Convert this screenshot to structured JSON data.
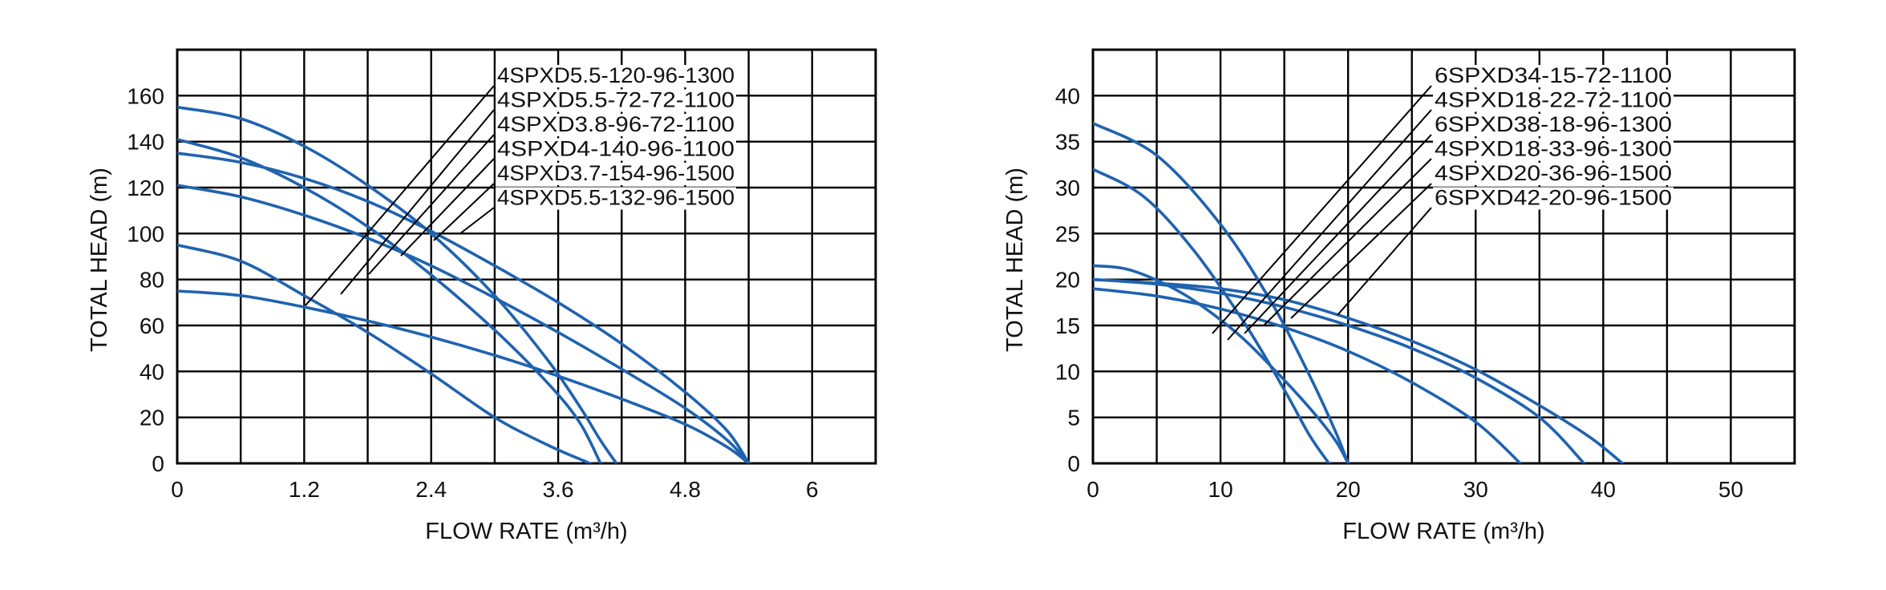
{
  "chart_data": [
    {
      "type": "line",
      "title": "",
      "xlabel": "FLOW  RATE (m³/h)",
      "ylabel": "TOTAL HEAD (m)",
      "xlim": [
        0,
        6.6
      ],
      "ylim": [
        0,
        180
      ],
      "x_ticks": [
        "0",
        "1.2",
        "2.4",
        "3.6",
        "4.8",
        "6"
      ],
      "x_tick_values": [
        0,
        1.2,
        2.4,
        3.6,
        4.8,
        6
      ],
      "y_ticks": [
        "0",
        "20",
        "40",
        "60",
        "80",
        "100",
        "120",
        "140",
        "160"
      ],
      "y_tick_values": [
        0,
        20,
        40,
        60,
        80,
        100,
        120,
        140,
        160
      ],
      "grid": true,
      "line_color": "#1f63b0",
      "series": [
        {
          "name": "4SPXD5.5-120-96-1300",
          "x": [
            0,
            0.6,
            1.2,
            1.8,
            2.4,
            3.0,
            3.5,
            3.8,
            4.0,
            4.15
          ],
          "y": [
            155,
            150,
            138,
            121,
            100,
            73,
            45,
            25,
            10,
            0
          ]
        },
        {
          "name": "4SPXD5.5-72-72-1100",
          "x": [
            0,
            0.6,
            1.2,
            1.8,
            2.4,
            3.0,
            3.5,
            3.8,
            4.0
          ],
          "y": [
            141,
            133,
            120,
            103,
            82,
            58,
            35,
            18,
            0
          ]
        },
        {
          "name": "4SPXD3.8-96-72-1100",
          "x": [
            0,
            0.6,
            1.2,
            1.8,
            2.4,
            3.0,
            3.6,
            4.2,
            4.8,
            5.2,
            5.4
          ],
          "y": [
            135,
            131,
            124,
            114,
            101,
            86,
            70,
            52,
            31,
            14,
            0
          ]
        },
        {
          "name": "4SPXD4-140-96-1100",
          "x": [
            0,
            0.6,
            1.2,
            1.8,
            2.4,
            3.0,
            3.6,
            4.2,
            4.8,
            5.2,
            5.4
          ],
          "y": [
            121,
            116,
            108,
            98,
            86,
            72,
            57,
            41,
            24,
            10,
            0
          ]
        },
        {
          "name": "4SPXD3.7-154-96-1500",
          "x": [
            0,
            0.6,
            1.2,
            1.8,
            2.4,
            3.0,
            3.5,
            3.9
          ],
          "y": [
            95,
            88,
            73,
            57,
            39,
            20,
            8,
            0
          ]
        },
        {
          "name": "4SPXD5.5-132-96-1500",
          "x": [
            0,
            0.6,
            1.2,
            1.8,
            2.4,
            3.0,
            3.6,
            4.2,
            4.8,
            5.2,
            5.4
          ],
          "y": [
            75,
            73,
            68,
            62,
            55,
            47,
            38,
            28,
            17,
            7,
            0
          ]
        }
      ]
    },
    {
      "type": "line",
      "title": "",
      "xlabel": "FLOW  RATE (m³/h)",
      "ylabel": "TOTAL HEAD (m)",
      "xlim": [
        0,
        55
      ],
      "ylim": [
        0,
        45
      ],
      "x_ticks": [
        "0",
        "10",
        "20",
        "30",
        "40",
        "50"
      ],
      "x_tick_values": [
        0,
        10,
        20,
        30,
        40,
        50
      ],
      "y_ticks": [
        "0",
        "5",
        "10",
        "15",
        "20",
        "25",
        "30",
        "35",
        "40"
      ],
      "y_tick_values": [
        0,
        5,
        10,
        15,
        20,
        25,
        30,
        35,
        40
      ],
      "grid": true,
      "line_color": "#1f63b0",
      "series": [
        {
          "name": "6SPXD34-15-72-1100",
          "x": [
            0,
            5,
            10,
            14,
            17,
            19,
            20
          ],
          "y": [
            37,
            33.5,
            26,
            17.5,
            9.5,
            3.5,
            0
          ]
        },
        {
          "name": "4SPXD18-22-72-1100",
          "x": [
            0,
            4,
            8,
            12,
            15,
            17,
            18.5
          ],
          "y": [
            32,
            29,
            23,
            15,
            8,
            3,
            0
          ]
        },
        {
          "name": "6SPXD38-18-96-1300",
          "x": [
            0,
            5,
            10,
            15,
            20,
            25,
            30,
            35,
            38.5
          ],
          "y": [
            20,
            19.5,
            18.5,
            17,
            15,
            12.5,
            9.3,
            5,
            0
          ]
        },
        {
          "name": "4SPXD18-33-96-1300",
          "x": [
            0,
            3,
            7,
            11,
            14,
            17,
            19,
            20
          ],
          "y": [
            21.5,
            21,
            18.5,
            14.5,
            10.5,
            6,
            2.5,
            0
          ]
        },
        {
          "name": "4SPXD20-36-96-1500",
          "x": [
            0,
            5,
            10,
            15,
            20,
            25,
            30,
            35,
            39,
            41.5
          ],
          "y": [
            20,
            19.6,
            19,
            17.8,
            15.8,
            13.3,
            10.2,
            6.3,
            2.8,
            0
          ]
        },
        {
          "name": "6SPXD42-20-96-1500",
          "x": [
            0,
            5,
            10,
            15,
            20,
            25,
            30,
            33.5
          ],
          "y": [
            19,
            18.2,
            16.8,
            14.8,
            12.2,
            8.8,
            4.5,
            0
          ]
        }
      ]
    }
  ]
}
